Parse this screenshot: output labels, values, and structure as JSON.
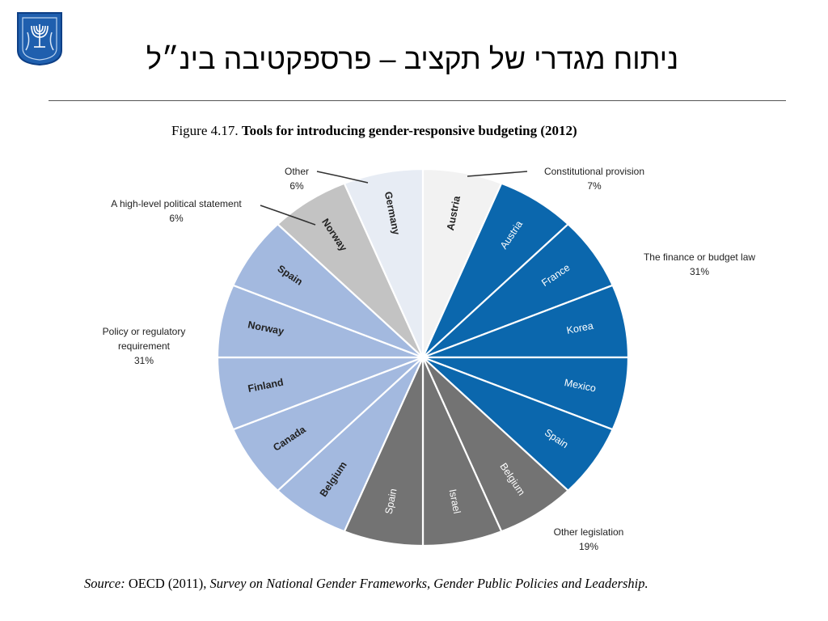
{
  "slide": {
    "title": "ניתוח מגדרי של תקציב – פרספקטיבה בינ״ל"
  },
  "figure": {
    "number": "Figure 4.17.",
    "caption": "Tools for introducing gender-responsive budgeting (2012)"
  },
  "source": {
    "prefix": "Source: ",
    "author": "OECD (2011), ",
    "title": "Survey on National Gender Frameworks, Gender Public Policies and Leadership."
  },
  "colors": {
    "finance": "#0b67ad",
    "policy": "#a3b9df",
    "legislation": "#737373",
    "political": "#c3c3c3",
    "other": "#e7ecf4",
    "constitutional": "#f2f2f2"
  },
  "chart_data": {
    "type": "pie",
    "title": "Tools for introducing gender-responsive budgeting (2012)",
    "total_countries": 16,
    "categories": [
      {
        "name": "Constitutional provision",
        "percent": "7%",
        "value": 7,
        "color_key": "constitutional",
        "countries": [
          "Austria"
        ]
      },
      {
        "name": "The finance or budget law",
        "percent": "31%",
        "value": 31,
        "color_key": "finance",
        "countries": [
          "Austria",
          "France",
          "Korea",
          "Mexico",
          "Spain"
        ]
      },
      {
        "name": "Other  legislation",
        "percent": "19%",
        "value": 19,
        "color_key": "legislation",
        "countries": [
          "Belgium",
          "Israel",
          "Spain"
        ]
      },
      {
        "name": "Policy or regulatory requirement",
        "percent": "31%",
        "value": 31,
        "color_key": "policy",
        "countries": [
          "Belgium",
          "Canada",
          "Finland",
          "Norway",
          "Spain"
        ]
      },
      {
        "name": "A high-level political statement",
        "percent": "6%",
        "value": 6,
        "color_key": "political",
        "countries": [
          "Norway"
        ]
      },
      {
        "name": "Other",
        "percent": "6%",
        "value": 6,
        "color_key": "other",
        "countries": [
          "Germany"
        ]
      }
    ],
    "labels": {
      "constitutional": [
        "Constitutional provision",
        "7%"
      ],
      "finance": [
        "The finance or budget law",
        "31%"
      ],
      "legislation": [
        "Other  legislation",
        "19%"
      ],
      "policy": [
        "Policy or regulatory",
        "requirement",
        "31%"
      ],
      "political": [
        "A high-level political statement",
        "6%"
      ],
      "other": [
        "Other",
        "6%"
      ]
    }
  }
}
